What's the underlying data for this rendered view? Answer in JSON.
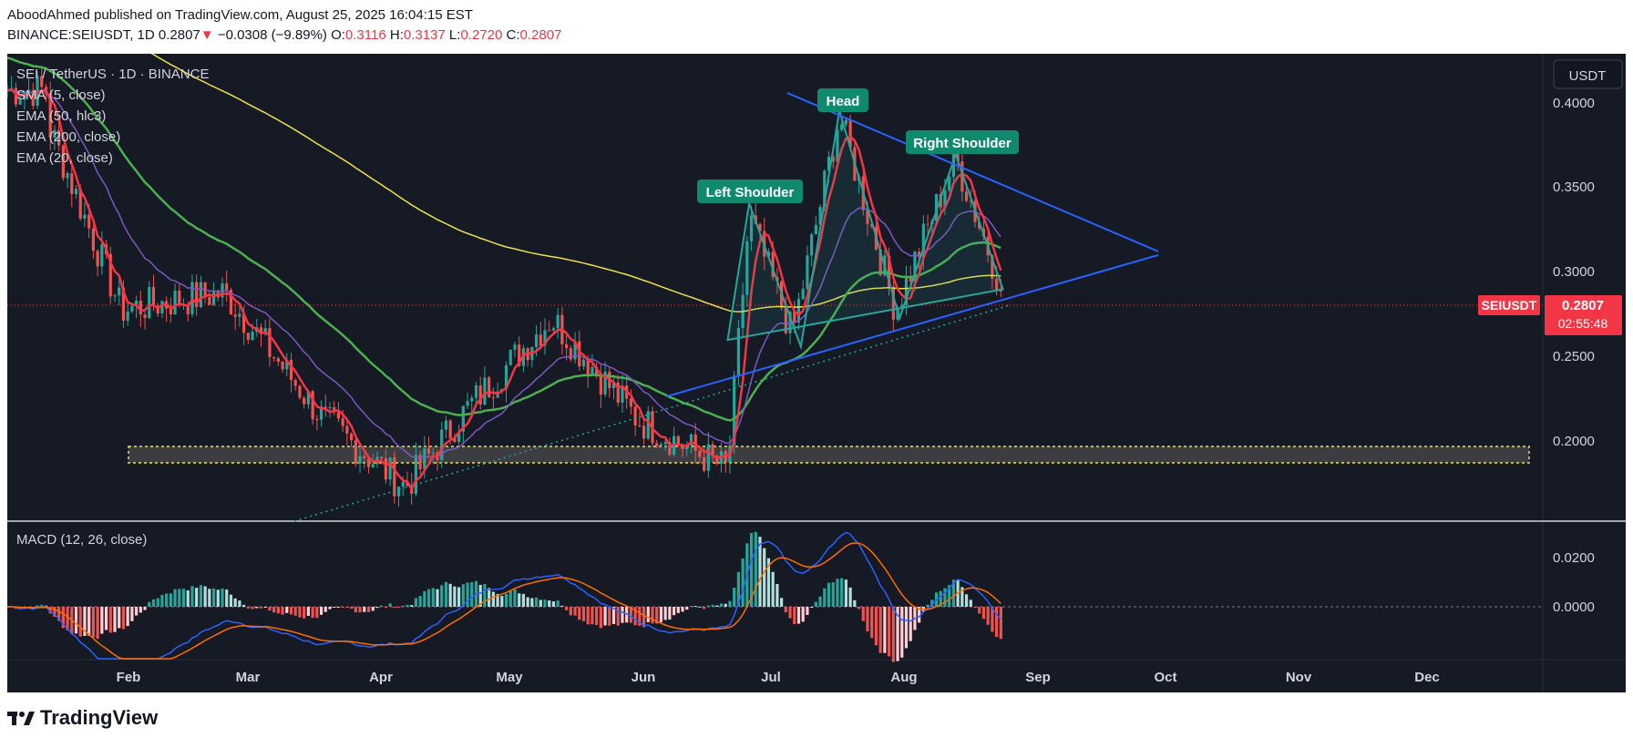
{
  "header": {
    "published": "AboodAhmed published on TradingView.com, August 25, 2025 16:04:15 EST",
    "symbol": "BINANCE:SEIUSDT, 1D",
    "last": "0.2807",
    "change_arrow": "▼",
    "change": "−0.0308 (−9.89%)",
    "o_label": "O:",
    "o": "0.3116",
    "h_label": "H:",
    "h": "0.3137",
    "l_label": "L:",
    "l": "0.2720",
    "c_label": "C:",
    "c": "0.2807"
  },
  "legend": {
    "pair": "SEI / TetherUS · 1D · BINANCE",
    "sma": "SMA (5, close)",
    "ema50": "EMA (50, hlc3)",
    "ema200": "EMA (200, close)",
    "ema20": "EMA (20, close)",
    "macd": "MACD (12, 26, close)"
  },
  "price_scale": {
    "currency": "USDT",
    "ticks": [
      "0.4000",
      "0.3500",
      "0.3000",
      "0.2500",
      "0.2000"
    ],
    "macd_ticks": [
      "0.0200",
      "0.0000"
    ],
    "symbol_tag": "SEIUSDT",
    "last_price": "0.2807",
    "countdown": "02:55:48"
  },
  "time_axis": [
    "Feb",
    "Mar",
    "Apr",
    "May",
    "Jun",
    "Jul",
    "Aug",
    "Sep",
    "Oct",
    "Nov",
    "Dec"
  ],
  "annotations": {
    "left_shoulder": "Left Shoulder",
    "head": "Head",
    "right_shoulder": "Right Shoulder"
  },
  "colors": {
    "background": "#161a25",
    "up": "#26a69a",
    "down": "#ef5350",
    "sma5": "#f23645",
    "ema20": "#7e57c2",
    "ema50": "#4caf50",
    "ema200": "#f0e04a",
    "trendline": "#2962ff",
    "macd_line": "#2962ff",
    "signal_line": "#ff6d00",
    "label_bg": "#0f8a6e"
  },
  "footer": {
    "brand": "TradingView"
  },
  "chart_data": {
    "type": "line",
    "title": "SEI / TetherUS · 1D · BINANCE",
    "x": [
      "2025-01-15",
      "2025-02-01",
      "2025-02-25",
      "2025-03-20",
      "2025-04-08",
      "2025-04-22",
      "2025-05-12",
      "2025-06-01",
      "2025-06-22",
      "2025-06-27",
      "2025-07-07",
      "2025-07-18",
      "2025-07-31",
      "2025-08-14",
      "2025-08-25"
    ],
    "series": [
      {
        "name": "SEIUSDT close",
        "values": [
          0.38,
          0.27,
          0.28,
          0.205,
          0.165,
          0.21,
          0.265,
          0.205,
          0.175,
          0.325,
          0.255,
          0.385,
          0.27,
          0.36,
          0.2807
        ]
      }
    ],
    "ylim": [
      0.16,
      0.42
    ],
    "patterns": [
      "Left Shoulder",
      "Head",
      "Right Shoulder"
    ],
    "support_zone": [
      0.187,
      0.197
    ],
    "macd_range": [
      -0.03,
      0.03
    ]
  }
}
